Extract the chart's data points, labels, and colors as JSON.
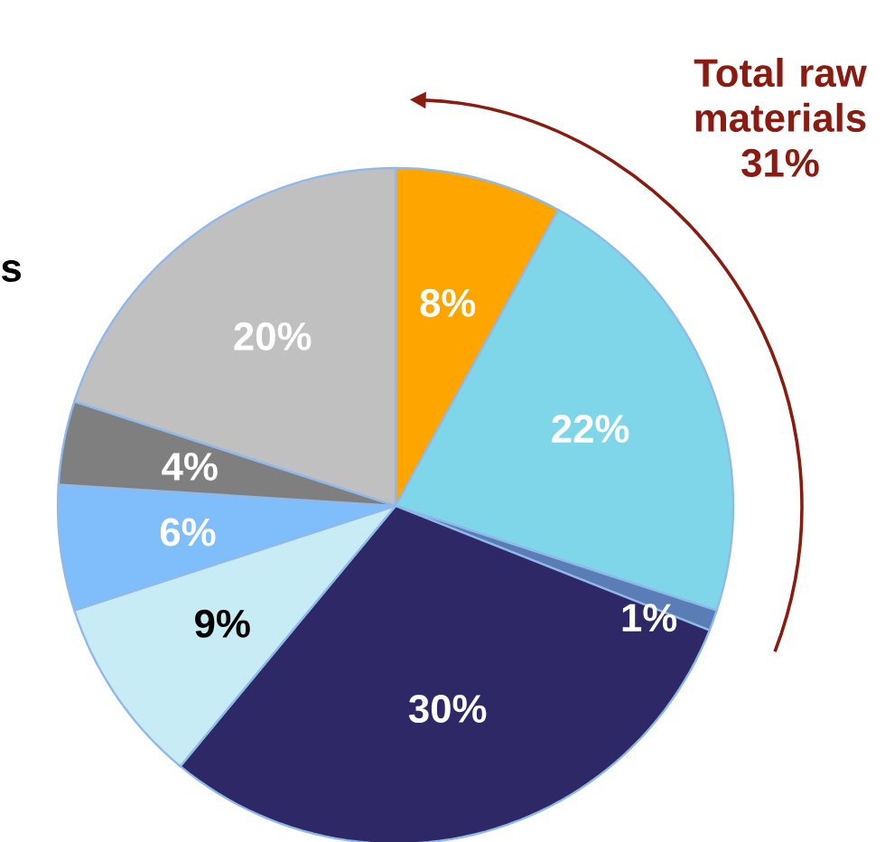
{
  "chart_data": {
    "type": "pie",
    "categories": [
      null,
      null,
      null,
      null,
      null,
      null,
      null,
      null
    ],
    "values": [
      8,
      22,
      1,
      30,
      9,
      6,
      4,
      20
    ],
    "value_labels": [
      "8%",
      "22%",
      "1%",
      "30%",
      "9%",
      "6%",
      "4%",
      "20%"
    ],
    "colors": [
      "#ffa500",
      "#7fd6e8",
      "#5a7db5",
      "#2e2966",
      "#c8ecf6",
      "#80bdfb",
      "#7f7f7f",
      "#c0c0c0"
    ],
    "annotations": [
      "Total raw materials 31%",
      "s"
    ]
  }
}
